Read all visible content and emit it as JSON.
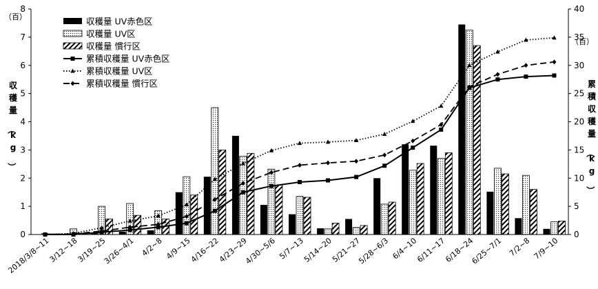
{
  "chart_data": {
    "type": "bar",
    "categories": [
      "2018/3/8~11",
      "3/12~18",
      "3/19~25",
      "3/26~4/1",
      "4/2~8",
      "4/9~15",
      "4/16~22",
      "4/23~29",
      "4/30~5/6",
      "5/7~13",
      "5/14~20",
      "5/21~27",
      "5/28~6/3",
      "6/4~10",
      "6/11~17",
      "6/18~24",
      "6/25~7/1",
      "7/2~8",
      "7/9~10"
    ],
    "left_axis": {
      "label": "収穫量（kg）",
      "unit": "（百）",
      "ylim": [
        0,
        8
      ],
      "ticks": [
        0,
        1,
        2,
        3,
        4,
        5,
        6,
        7,
        8
      ]
    },
    "right_axis": {
      "label": "累積収穫量（kg）",
      "unit": "（百）",
      "ylim": [
        0,
        40
      ],
      "ticks": [
        0,
        5,
        10,
        15,
        20,
        25,
        30,
        35,
        40
      ]
    },
    "bar_series": [
      {
        "name": "収穫量 UV赤色区",
        "color": "#000000",
        "pattern": "solid",
        "values": [
          0,
          0,
          0.05,
          0.1,
          0.15,
          1.5,
          2.05,
          3.5,
          1.05,
          0.72,
          0.22,
          0.55,
          2.0,
          3.2,
          3.15,
          7.45,
          1.52,
          0.58,
          0.2
        ]
      },
      {
        "name": "収穫量 UV区",
        "color": "#000000",
        "pattern": "dots",
        "values": [
          0.03,
          0.2,
          1.0,
          1.1,
          0.85,
          2.05,
          4.5,
          2.78,
          2.32,
          1.35,
          0.2,
          0.25,
          1.08,
          2.28,
          2.7,
          7.25,
          2.35,
          2.1,
          0.45
        ]
      },
      {
        "name": "収穫量 慣行区",
        "color": "#000000",
        "pattern": "hatch",
        "values": [
          0.02,
          0.05,
          0.55,
          0.68,
          0.55,
          1.4,
          3.0,
          2.88,
          1.75,
          1.32,
          0.4,
          0.32,
          1.15,
          2.52,
          2.9,
          6.7,
          2.15,
          1.6,
          0.48
        ]
      }
    ],
    "line_series": [
      {
        "name": "累積収穫量 UV赤色区",
        "style": "solid",
        "marker": "square",
        "values": [
          0,
          0,
          0.4,
          0.8,
          1.3,
          2.0,
          4.2,
          7.5,
          8.6,
          9.3,
          9.6,
          10.2,
          12.2,
          15.4,
          18.6,
          26.0,
          27.5,
          28.0,
          28.2
        ]
      },
      {
        "name": "累積収穫量 UV区",
        "style": "dotted",
        "marker": "triangle",
        "values": [
          0,
          0.2,
          1.2,
          2.4,
          3.3,
          5.3,
          9.8,
          12.6,
          14.9,
          16.2,
          16.4,
          16.7,
          17.8,
          20.1,
          22.8,
          30.0,
          32.4,
          34.5,
          34.9
        ]
      },
      {
        "name": "累積収穫量 慣行区",
        "style": "dashed",
        "marker": "diamond",
        "values": [
          0,
          0.1,
          0.6,
          1.3,
          1.8,
          3.2,
          6.2,
          9.1,
          11.0,
          12.3,
          12.7,
          13.0,
          14.1,
          16.6,
          19.5,
          26.2,
          28.4,
          30.0,
          30.6
        ]
      }
    ],
    "legend_position": "top-left",
    "grid": false
  }
}
